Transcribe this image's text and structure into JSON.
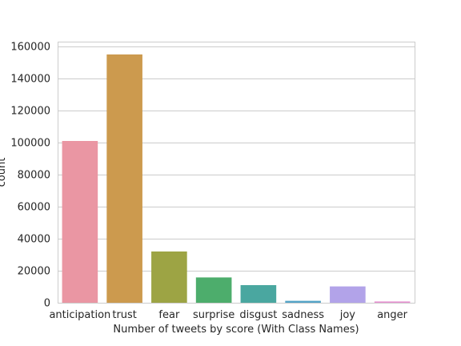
{
  "chart_data": {
    "type": "bar",
    "title": "",
    "xlabel": "Number of tweets by score (With Class Names)",
    "ylabel": "count",
    "categories": [
      "anticipation",
      "trust",
      "fear",
      "surprise",
      "disgust",
      "sadness",
      "joy",
      "anger"
    ],
    "values": [
      101000,
      155000,
      32000,
      15800,
      11000,
      1200,
      10200,
      800
    ],
    "colors": [
      "#ea96a3",
      "#cc9a4e",
      "#9da444",
      "#4dad6c",
      "#4aa7a0",
      "#54a4c7",
      "#b2a3e9",
      "#e690d0"
    ],
    "ylim": [
      0,
      163000
    ],
    "yticks": [
      0,
      20000,
      40000,
      60000,
      80000,
      100000,
      120000,
      140000,
      160000
    ],
    "grid": true,
    "grid_axis": "y"
  }
}
